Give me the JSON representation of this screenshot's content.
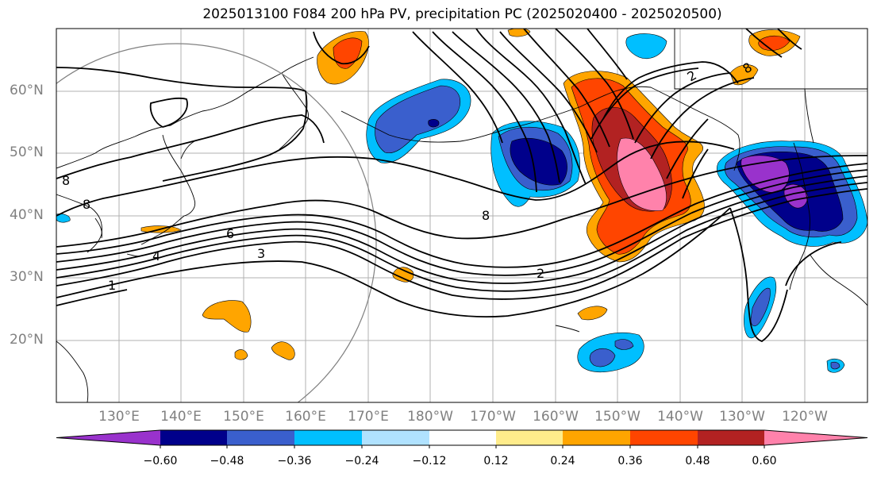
{
  "title": "2025013100 F084 200 hPa PV, precipitation PC (2025020400 - 2025020500)",
  "lat_labels": [
    "60°N",
    "50°N",
    "40°N",
    "30°N",
    "20°N"
  ],
  "lon_labels": [
    "130°E",
    "140°E",
    "150°E",
    "160°E",
    "170°E",
    "180°W",
    "170°W",
    "160°W",
    "150°W",
    "140°W",
    "130°W",
    "120°W"
  ],
  "contour_labels": [
    "1",
    "2",
    "3",
    "6",
    "8",
    "8",
    "4",
    "8",
    "2",
    "8"
  ],
  "colorbar": {
    "colors": [
      "#9932cc",
      "#00008b",
      "#3a5fcd",
      "#00bfff",
      "#b0e2ff",
      "#ffffff",
      "#ffec8b",
      "#ffa500",
      "#ff4500",
      "#b22222",
      "#ff82ab"
    ],
    "tick_labels": [
      "−0.60",
      "−0.48",
      "−0.36",
      "−0.24",
      "−0.12",
      "0.12",
      "0.24",
      "0.36",
      "0.48",
      "0.60"
    ]
  }
}
